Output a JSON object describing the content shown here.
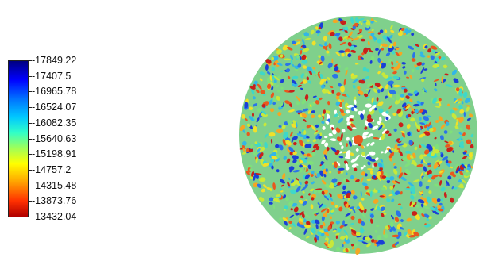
{
  "legend": {
    "labels": [
      "-17849.22",
      "-17407.5",
      "-16965.78",
      "-16524.07",
      "-16082.35",
      "-15640.63",
      "-15198.91",
      "-14757.2",
      "-14315.48",
      "-13873.76",
      "-13432.04"
    ],
    "colormap": [
      "#00007f",
      "#0000ff",
      "#00c8ff",
      "#a0ff58",
      "#ffff00",
      "#ffa000",
      "#b00000"
    ]
  },
  "render": {
    "palette": [
      "#1a3fd6",
      "#2a74e8",
      "#33b6e6",
      "#3fd8c8",
      "#7fe07a",
      "#c8e83a",
      "#f0e02a",
      "#f5a623",
      "#e8581e",
      "#c8201a",
      "#ffffff"
    ]
  }
}
